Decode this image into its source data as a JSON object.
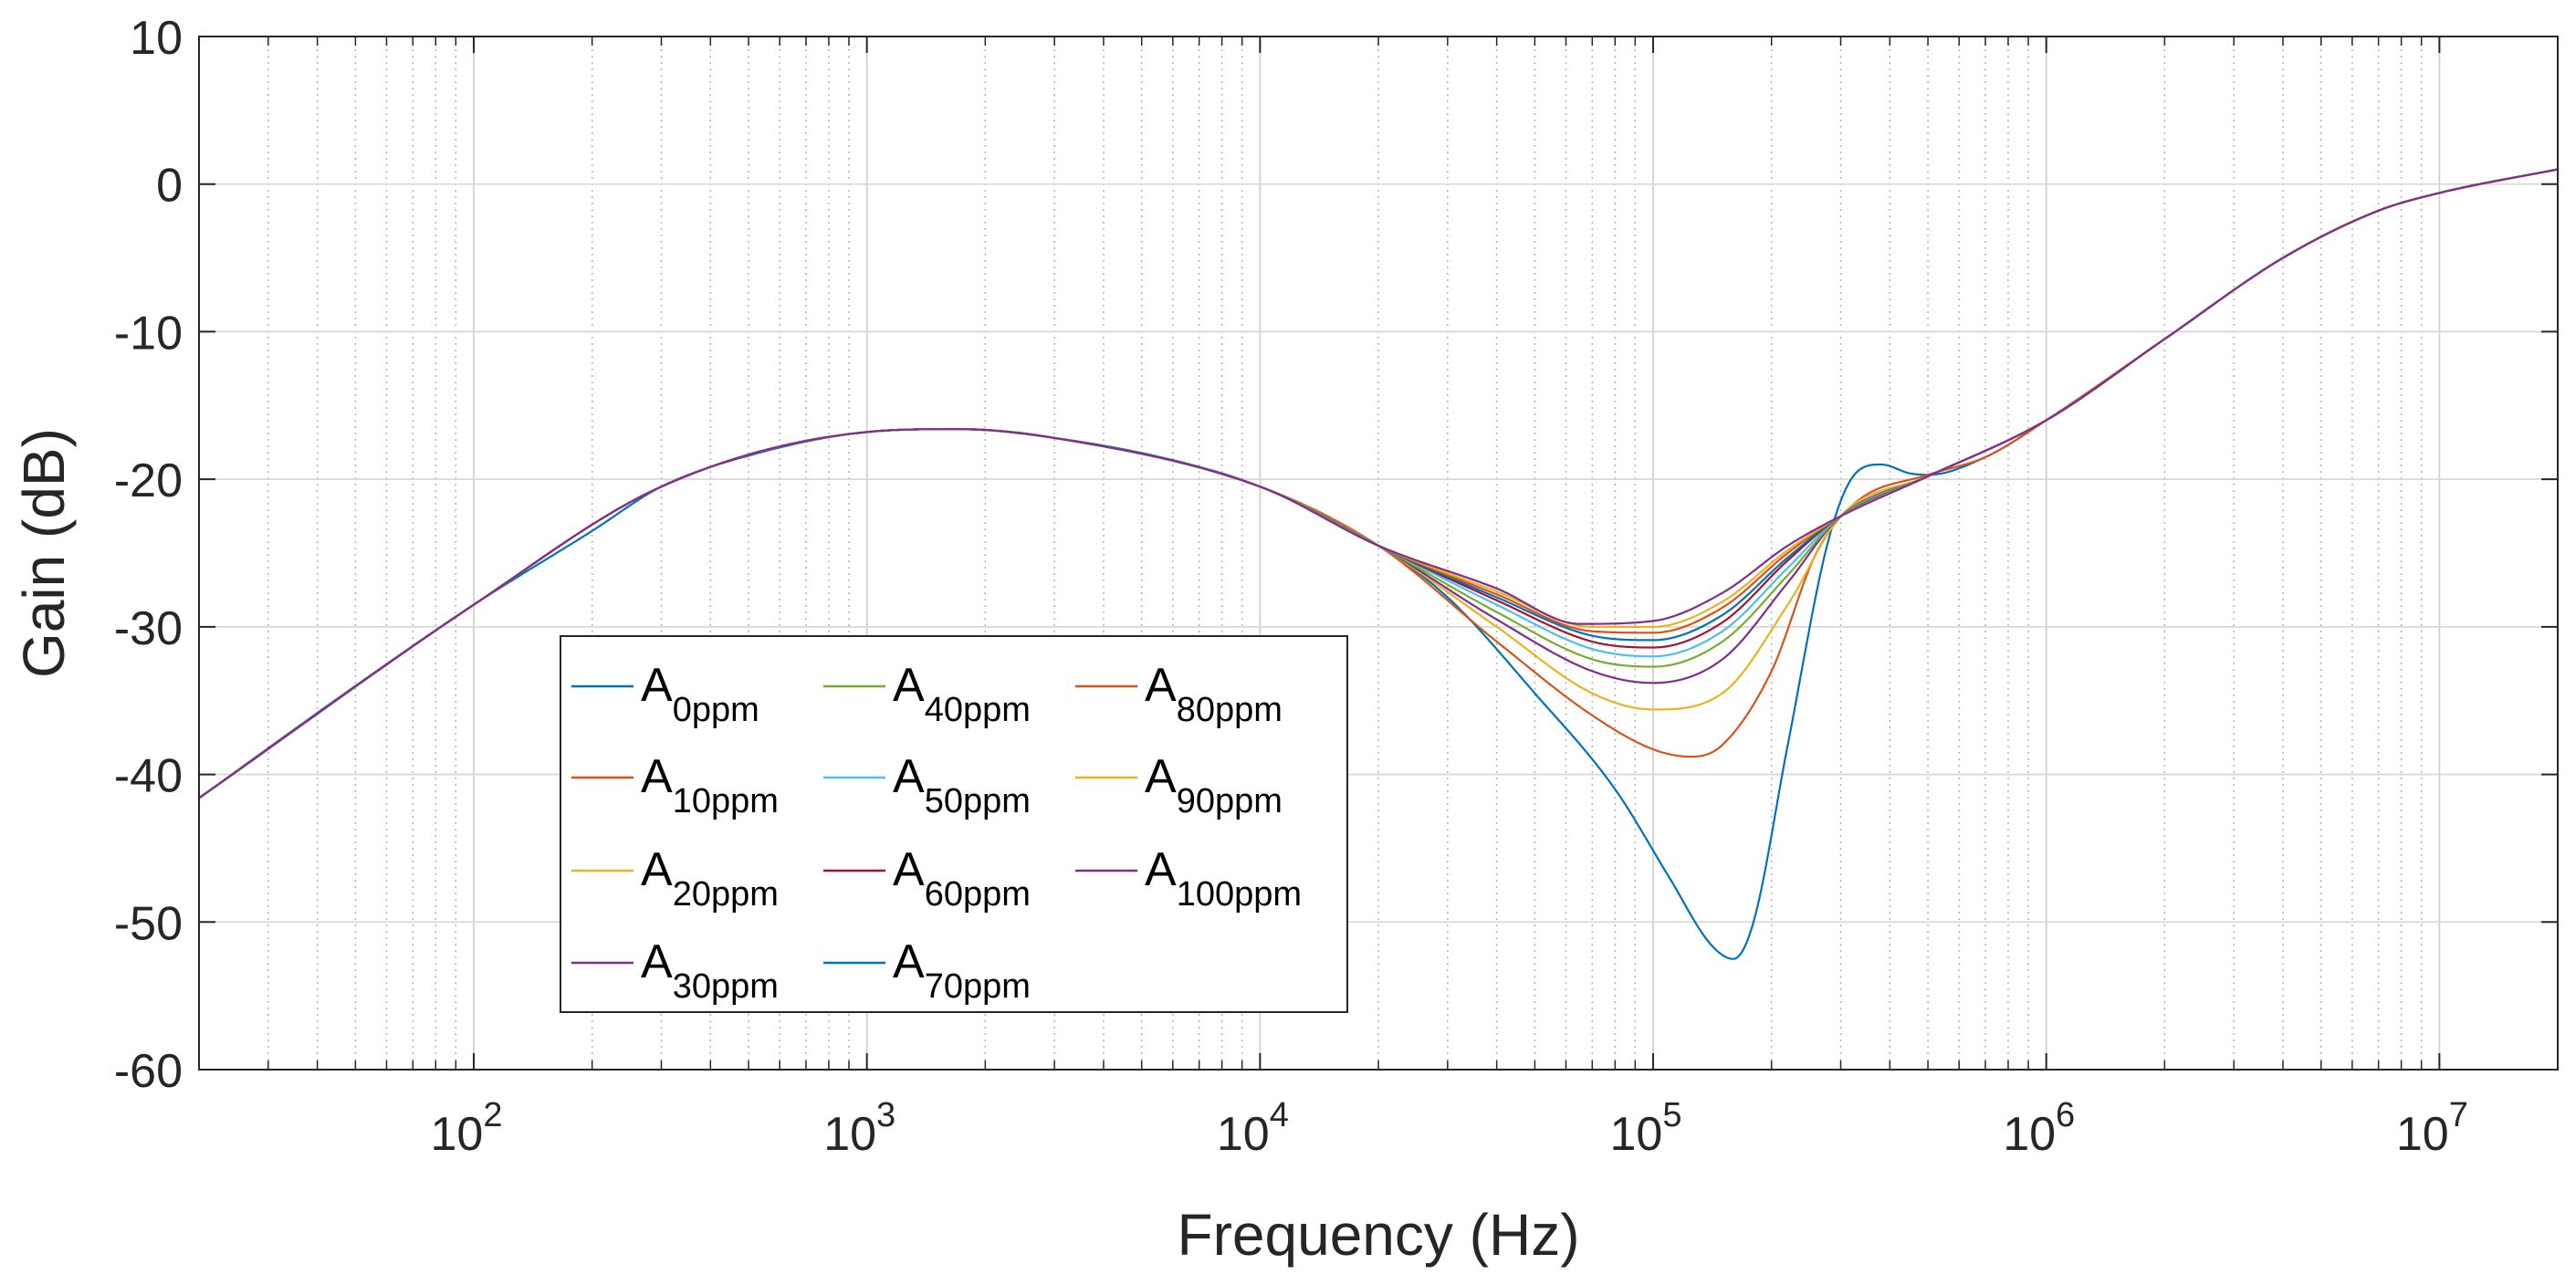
{
  "chart_data": {
    "type": "line",
    "xscale": "log",
    "xlim": [
      20,
      20000000
    ],
    "ylim": [
      -60,
      10
    ],
    "grid": true,
    "xlabel": "Frequency (Hz)",
    "ylabel": "Gain (dB)",
    "xticks": [
      {
        "value": 100,
        "base": "10",
        "exp": "2"
      },
      {
        "value": 1000,
        "base": "10",
        "exp": "3"
      },
      {
        "value": 10000,
        "base": "10",
        "exp": "4"
      },
      {
        "value": 100000,
        "base": "10",
        "exp": "5"
      },
      {
        "value": 1000000,
        "base": "10",
        "exp": "6"
      },
      {
        "value": 10000000,
        "base": "10",
        "exp": "7"
      }
    ],
    "yticks": [
      {
        "value": 10,
        "label": "10"
      },
      {
        "value": 0,
        "label": "0"
      },
      {
        "value": -10,
        "label": "-10"
      },
      {
        "value": -20,
        "label": "-20"
      },
      {
        "value": -30,
        "label": "-30"
      },
      {
        "value": -40,
        "label": "-40"
      },
      {
        "value": -50,
        "label": "-50"
      },
      {
        "value": -60,
        "label": "-60"
      }
    ],
    "legend_position": "lower-left",
    "legend_columns": 3,
    "series": [
      {
        "name": "A0ppm",
        "base": "A",
        "sub": "0ppm",
        "color": "#0072BD",
        "points": [
          [
            20,
            -41.6
          ],
          [
            50,
            -34
          ],
          [
            100,
            -28.5
          ],
          [
            200,
            -23.5
          ],
          [
            300,
            -20.5
          ],
          [
            500,
            -18.4
          ],
          [
            1000,
            -16.8
          ],
          [
            1700,
            -16.6
          ],
          [
            3000,
            -17.2
          ],
          [
            6000,
            -18.7
          ],
          [
            10000,
            -20.5
          ],
          [
            20000,
            -24.5
          ],
          [
            30000,
            -28
          ],
          [
            50000,
            -34.5
          ],
          [
            80000,
            -41
          ],
          [
            110000,
            -47
          ],
          [
            140000,
            -51.5
          ],
          [
            160000,
            -52.5
          ],
          [
            180000,
            -50
          ],
          [
            220000,
            -38
          ],
          [
            280000,
            -24
          ],
          [
            330000,
            -19.5
          ],
          [
            380000,
            -19
          ],
          [
            450000,
            -19.6
          ],
          [
            500000,
            -19.7
          ],
          [
            700000,
            -18.5
          ],
          [
            1000000,
            -16
          ],
          [
            2000000,
            -10.5
          ],
          [
            4000000,
            -5
          ],
          [
            7000000,
            -1.8
          ],
          [
            10000000,
            -0.6
          ],
          [
            20000000,
            1
          ]
        ]
      },
      {
        "name": "A10ppm",
        "base": "A",
        "sub": "10ppm",
        "color": "#D95319",
        "points": [
          [
            20,
            -41.6
          ],
          [
            100,
            -28.5
          ],
          [
            300,
            -20.5
          ],
          [
            1000,
            -16.8
          ],
          [
            1700,
            -16.6
          ],
          [
            3000,
            -17.2
          ],
          [
            10000,
            -20.5
          ],
          [
            20000,
            -24.5
          ],
          [
            40000,
            -31
          ],
          [
            70000,
            -36
          ],
          [
            100000,
            -38.3
          ],
          [
            125000,
            -38.8
          ],
          [
            150000,
            -38
          ],
          [
            200000,
            -33
          ],
          [
            260000,
            -25
          ],
          [
            330000,
            -21.5
          ],
          [
            500000,
            -19.7
          ],
          [
            700000,
            -18.5
          ],
          [
            1000000,
            -16
          ],
          [
            2000000,
            -10.5
          ],
          [
            4000000,
            -5
          ],
          [
            7000000,
            -1.8
          ],
          [
            10000000,
            -0.6
          ],
          [
            20000000,
            1
          ]
        ]
      },
      {
        "name": "A20ppm",
        "base": "A",
        "sub": "20ppm",
        "color": "#EDB120",
        "points": [
          [
            20,
            -41.6
          ],
          [
            100,
            -28.5
          ],
          [
            300,
            -20.5
          ],
          [
            1000,
            -16.8
          ],
          [
            1700,
            -16.6
          ],
          [
            3000,
            -17.2
          ],
          [
            10000,
            -20.5
          ],
          [
            20000,
            -24.5
          ],
          [
            40000,
            -30
          ],
          [
            70000,
            -34.5
          ],
          [
            100000,
            -35.6
          ],
          [
            150000,
            -34.5
          ],
          [
            220000,
            -28.5
          ],
          [
            300000,
            -22.5
          ],
          [
            500000,
            -19.8
          ],
          [
            1000000,
            -16
          ],
          [
            2000000,
            -10.5
          ],
          [
            4000000,
            -5
          ],
          [
            7000000,
            -1.8
          ],
          [
            10000000,
            -0.6
          ],
          [
            20000000,
            1
          ]
        ]
      },
      {
        "name": "A30ppm",
        "base": "A",
        "sub": "30ppm",
        "color": "#7E2F8E",
        "points": [
          [
            20,
            -41.6
          ],
          [
            100,
            -28.5
          ],
          [
            300,
            -20.5
          ],
          [
            1000,
            -16.8
          ],
          [
            1700,
            -16.6
          ],
          [
            3000,
            -17.2
          ],
          [
            10000,
            -20.5
          ],
          [
            20000,
            -24.5
          ],
          [
            40000,
            -29.5
          ],
          [
            70000,
            -33
          ],
          [
            100000,
            -33.8
          ],
          [
            150000,
            -32.2
          ],
          [
            220000,
            -27
          ],
          [
            300000,
            -22.5
          ],
          [
            500000,
            -19.8
          ],
          [
            1000000,
            -16
          ],
          [
            2000000,
            -10.5
          ],
          [
            4000000,
            -5
          ],
          [
            7000000,
            -1.8
          ],
          [
            10000000,
            -0.6
          ],
          [
            20000000,
            1
          ]
        ]
      },
      {
        "name": "A40ppm",
        "base": "A",
        "sub": "40ppm",
        "color": "#77AC30",
        "points": [
          [
            20,
            -41.6
          ],
          [
            100,
            -28.5
          ],
          [
            300,
            -20.5
          ],
          [
            1000,
            -16.8
          ],
          [
            1700,
            -16.6
          ],
          [
            3000,
            -17.2
          ],
          [
            10000,
            -20.5
          ],
          [
            20000,
            -24.5
          ],
          [
            40000,
            -29
          ],
          [
            70000,
            -32.2
          ],
          [
            100000,
            -32.7
          ],
          [
            150000,
            -31
          ],
          [
            220000,
            -26.5
          ],
          [
            300000,
            -22.5
          ],
          [
            500000,
            -19.8
          ],
          [
            1000000,
            -16
          ],
          [
            2000000,
            -10.5
          ],
          [
            4000000,
            -5
          ],
          [
            7000000,
            -1.8
          ],
          [
            10000000,
            -0.6
          ],
          [
            20000000,
            1
          ]
        ]
      },
      {
        "name": "A50ppm",
        "base": "A",
        "sub": "50ppm",
        "color": "#4DBEEE",
        "points": [
          [
            20,
            -41.6
          ],
          [
            100,
            -28.5
          ],
          [
            300,
            -20.5
          ],
          [
            1000,
            -16.8
          ],
          [
            1700,
            -16.6
          ],
          [
            3000,
            -17.2
          ],
          [
            10000,
            -20.5
          ],
          [
            20000,
            -24.5
          ],
          [
            40000,
            -28.5
          ],
          [
            70000,
            -31.5
          ],
          [
            100000,
            -32
          ],
          [
            150000,
            -30.3
          ],
          [
            220000,
            -26
          ],
          [
            300000,
            -22.5
          ],
          [
            500000,
            -19.8
          ],
          [
            1000000,
            -16
          ],
          [
            2000000,
            -10.5
          ],
          [
            4000000,
            -5
          ],
          [
            7000000,
            -1.8
          ],
          [
            10000000,
            -0.6
          ],
          [
            20000000,
            1
          ]
        ]
      },
      {
        "name": "A60ppm",
        "base": "A",
        "sub": "60ppm",
        "color": "#A2142F",
        "points": [
          [
            20,
            -41.6
          ],
          [
            100,
            -28.5
          ],
          [
            300,
            -20.5
          ],
          [
            1000,
            -16.8
          ],
          [
            1700,
            -16.6
          ],
          [
            3000,
            -17.2
          ],
          [
            10000,
            -20.5
          ],
          [
            20000,
            -24.5
          ],
          [
            40000,
            -28.2
          ],
          [
            70000,
            -31
          ],
          [
            100000,
            -31.4
          ],
          [
            150000,
            -29.7
          ],
          [
            220000,
            -25.5
          ],
          [
            300000,
            -22.5
          ],
          [
            500000,
            -19.8
          ],
          [
            1000000,
            -16
          ],
          [
            2000000,
            -10.5
          ],
          [
            4000000,
            -5
          ],
          [
            7000000,
            -1.8
          ],
          [
            10000000,
            -0.6
          ],
          [
            20000000,
            1
          ]
        ]
      },
      {
        "name": "A70ppm",
        "base": "A",
        "sub": "70ppm",
        "color": "#0072BD",
        "points": [
          [
            20,
            -41.6
          ],
          [
            100,
            -28.5
          ],
          [
            300,
            -20.5
          ],
          [
            1000,
            -16.8
          ],
          [
            1700,
            -16.6
          ],
          [
            3000,
            -17.2
          ],
          [
            10000,
            -20.5
          ],
          [
            20000,
            -24.5
          ],
          [
            40000,
            -28
          ],
          [
            70000,
            -30.6
          ],
          [
            100000,
            -30.9
          ],
          [
            150000,
            -29.2
          ],
          [
            220000,
            -25.3
          ],
          [
            300000,
            -22.5
          ],
          [
            500000,
            -19.8
          ],
          [
            1000000,
            -16
          ],
          [
            2000000,
            -10.5
          ],
          [
            4000000,
            -5
          ],
          [
            7000000,
            -1.8
          ],
          [
            10000000,
            -0.6
          ],
          [
            20000000,
            1
          ]
        ]
      },
      {
        "name": "A80ppm",
        "base": "A",
        "sub": "80ppm",
        "color": "#D95319",
        "points": [
          [
            20,
            -41.6
          ],
          [
            100,
            -28.5
          ],
          [
            300,
            -20.5
          ],
          [
            1000,
            -16.8
          ],
          [
            1700,
            -16.6
          ],
          [
            3000,
            -17.2
          ],
          [
            10000,
            -20.5
          ],
          [
            20000,
            -24.5
          ],
          [
            40000,
            -27.8
          ],
          [
            70000,
            -30.3
          ],
          [
            100000,
            -30.4
          ],
          [
            150000,
            -28.7
          ],
          [
            220000,
            -25
          ],
          [
            300000,
            -22.5
          ],
          [
            500000,
            -19.8
          ],
          [
            1000000,
            -16
          ],
          [
            2000000,
            -10.5
          ],
          [
            4000000,
            -5
          ],
          [
            7000000,
            -1.8
          ],
          [
            10000000,
            -0.6
          ],
          [
            20000000,
            1
          ]
        ]
      },
      {
        "name": "A90ppm",
        "base": "A",
        "sub": "90ppm",
        "color": "#EDB120",
        "points": [
          [
            20,
            -41.6
          ],
          [
            100,
            -28.5
          ],
          [
            300,
            -20.5
          ],
          [
            1000,
            -16.8
          ],
          [
            1700,
            -16.6
          ],
          [
            3000,
            -17.2
          ],
          [
            10000,
            -20.5
          ],
          [
            20000,
            -24.5
          ],
          [
            40000,
            -27.6
          ],
          [
            70000,
            -30
          ],
          [
            100000,
            -30
          ],
          [
            150000,
            -28.3
          ],
          [
            220000,
            -24.8
          ],
          [
            300000,
            -22.5
          ],
          [
            500000,
            -19.8
          ],
          [
            1000000,
            -16
          ],
          [
            2000000,
            -10.5
          ],
          [
            4000000,
            -5
          ],
          [
            7000000,
            -1.8
          ],
          [
            10000000,
            -0.6
          ],
          [
            20000000,
            1
          ]
        ]
      },
      {
        "name": "A100ppm",
        "base": "A",
        "sub": "100ppm",
        "color": "#7E2F8E",
        "points": [
          [
            20,
            -41.6
          ],
          [
            100,
            -28.5
          ],
          [
            300,
            -20.5
          ],
          [
            1000,
            -16.8
          ],
          [
            1700,
            -16.6
          ],
          [
            3000,
            -17.2
          ],
          [
            10000,
            -20.5
          ],
          [
            20000,
            -24.5
          ],
          [
            40000,
            -27.4
          ],
          [
            65000,
            -29.8
          ],
          [
            100000,
            -29.6
          ],
          [
            150000,
            -27.7
          ],
          [
            220000,
            -24.5
          ],
          [
            300000,
            -22.5
          ],
          [
            500000,
            -19.8
          ],
          [
            1000000,
            -16
          ],
          [
            2000000,
            -10.5
          ],
          [
            4000000,
            -5
          ],
          [
            7000000,
            -1.8
          ],
          [
            10000000,
            -0.6
          ],
          [
            20000000,
            1
          ]
        ]
      }
    ]
  }
}
